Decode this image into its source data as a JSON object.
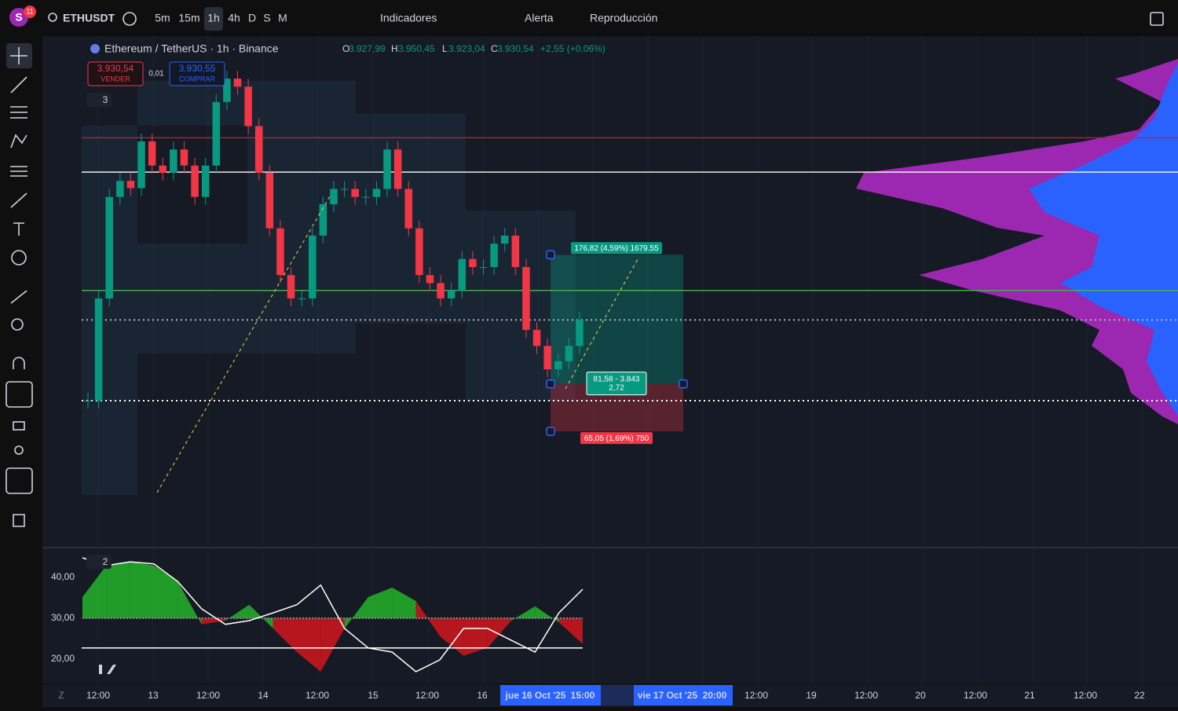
{
  "toolbar": {
    "avatar": "S",
    "badge": "11",
    "symbol": "ETHUSDT",
    "intervals": [
      "5m",
      "15m",
      "1h",
      "4h",
      "D",
      "S",
      "M"
    ],
    "indicators": "Indicadores",
    "alert": "Alerta",
    "replay": "Reproducción"
  },
  "legend": {
    "title": "Ethereum / TetherUS · 1h · Binance",
    "o_label": "O",
    "o": "3.927,99",
    "h_label": "H",
    "h": "3.950,45",
    "l_label": "L",
    "l": "3.923,04",
    "c_label": "C",
    "c": "3.930,54",
    "change": "+2,55 (+0,06%)"
  },
  "order": {
    "sell_price": "3.930,54",
    "sell": "VENDER",
    "spread": "0,01",
    "buy_price": "3.930,55",
    "buy": "COMPRAR",
    "collapse_main": "3",
    "collapse_osc": "2"
  },
  "trade": {
    "entry": 3843,
    "target_offset": 176.82,
    "stop_offset": 65.05,
    "target_label": "176,82 (4,59%) 1679.55",
    "entry_label_1": "81,58 - 3.843",
    "entry_label_2": "2,72",
    "stop_label": "65,05 (1,69%) 750"
  },
  "chart_data": [
    {
      "type": "candlestick",
      "ylim": [
        3621,
        4288
      ],
      "values": [
        3820,
        3960,
        4099,
        4121,
        4111,
        4175,
        4142,
        4132,
        4164,
        4142,
        4099,
        4142,
        4229,
        4261,
        4250,
        4196,
        4132,
        4056,
        3992,
        3960,
        3960,
        4046,
        4089,
        4110,
        4110,
        4099,
        4099,
        4110,
        4164,
        4110,
        4056,
        3992,
        3981,
        3960,
        3971,
        4014,
        4003,
        4003,
        4035,
        4046,
        4003,
        3917,
        3895,
        3863,
        3874,
        3895,
        3930.54
      ],
      "up_color": "#089981",
      "down_color": "#f23645",
      "levels": [
        {
          "value": 4180,
          "color": "#b22833",
          "style": "solid"
        },
        {
          "value": 4133,
          "color": "#ffffff",
          "style": "solid"
        },
        {
          "value": 3971,
          "color": "#4caf50",
          "style": "solid"
        },
        {
          "value": 3930.54,
          "color": "#b2b5be",
          "style": "dotted"
        },
        {
          "value": 3820,
          "color": "#ffffff",
          "style": "dotted"
        }
      ]
    },
    {
      "type": "oscillator",
      "ylim": [
        14,
        47.3
      ],
      "yticks": [
        {
          "value": 40,
          "label": "40,00"
        },
        {
          "value": 30,
          "label": "30,00"
        },
        {
          "value": 20,
          "label": "20,00"
        }
      ],
      "baseline": 30,
      "reference": 22.7,
      "series": [
        {
          "color": "#ffffff",
          "values": [
            44.8,
            42.9,
            43.8,
            43.3,
            39.0,
            32.3,
            28.5,
            29.4,
            31.3,
            33.3,
            38.1,
            27.5,
            22.7,
            21.7,
            16.9,
            19.8,
            27.5,
            27.5,
            24.6,
            21.7,
            31.3,
            37.1
          ]
        },
        {
          "color": "#22ab2a",
          "negative_color": "#c8161d",
          "values": [
            35.2,
            42.9,
            43.8,
            42.9,
            39.0,
            28.5,
            29.4,
            33.3,
            27.5,
            21.7,
            16.9,
            27.5,
            35.2,
            37.5,
            34.2,
            25.6,
            20.8,
            22.7,
            29.4,
            32.9,
            29.0,
            23.7
          ]
        }
      ]
    }
  ],
  "time_axis": {
    "zoom": "Z",
    "labels": [
      "12:00",
      "13",
      "12:00",
      "14",
      "12:00",
      "15",
      "12:00",
      "16",
      "jue 16 Oct '25",
      "15:00",
      "vie 17 Oct '25",
      "20:00",
      "12:00",
      "19",
      "12:00",
      "20",
      "12:00",
      "21",
      "12:00",
      "22"
    ]
  }
}
